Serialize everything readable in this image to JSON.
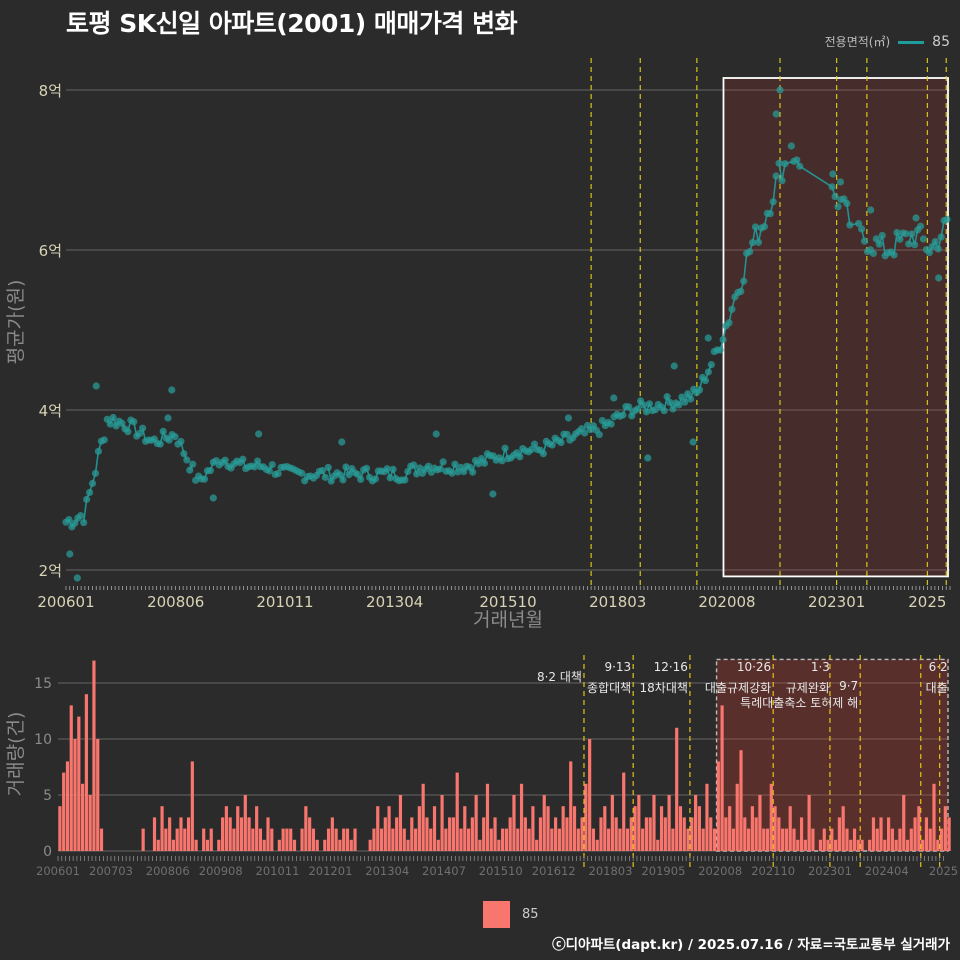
{
  "title": "토평 SK신일 아파트(2001) 매매가격 변화",
  "legend_top": {
    "title": "전용면적(㎡)",
    "label": "85",
    "color": "#1f9c9c"
  },
  "legend_bottom": {
    "label": "85",
    "color": "#f8766d"
  },
  "caption": "ⓒ디아파트(dapt.kr) / 2025.07.16 / 자료=국토교통부 실거래가",
  "chart_data": [
    {
      "type": "scatter",
      "title": "토평 SK신일 아파트(2001) 매매가격 변화",
      "xlabel": "거래년월",
      "ylabel": "평균가(원)",
      "x_tick_labels": [
        "200601",
        "200806",
        "201011",
        "201304",
        "201510",
        "201803",
        "202008",
        "202301",
        "2025"
      ],
      "y_tick_labels": [
        "2억",
        "4억",
        "6억",
        "8억"
      ],
      "ylim": [
        1.8,
        8.4
      ],
      "series": [
        {
          "name": "85",
          "trend": [
            [
              "2006-01",
              2.6
            ],
            [
              "2006-06",
              2.7
            ],
            [
              "2006-12",
              3.9
            ],
            [
              "2007-06",
              3.8
            ],
            [
              "2007-12",
              3.6
            ],
            [
              "2008-06",
              3.7
            ],
            [
              "2008-12",
              3.1
            ],
            [
              "2009-06",
              3.4
            ],
            [
              "2009-12",
              3.3
            ],
            [
              "2010-06",
              3.3
            ],
            [
              "2010-12",
              3.2
            ],
            [
              "2011-06",
              3.2
            ],
            [
              "2011-12",
              3.2
            ],
            [
              "2012-06",
              3.2
            ],
            [
              "2012-12",
              3.2
            ],
            [
              "2013-06",
              3.2
            ],
            [
              "2013-12",
              3.3
            ],
            [
              "2014-06",
              3.3
            ],
            [
              "2014-12",
              3.3
            ],
            [
              "2015-06",
              3.4
            ],
            [
              "2015-12",
              3.5
            ],
            [
              "2016-06",
              3.5
            ],
            [
              "2016-12",
              3.6
            ],
            [
              "2017-06",
              3.7
            ],
            [
              "2017-12",
              3.8
            ],
            [
              "2018-06",
              4.0
            ],
            [
              "2018-12",
              4.05
            ],
            [
              "2019-06",
              4.1
            ],
            [
              "2019-12",
              4.2
            ],
            [
              "2020-06",
              4.8
            ],
            [
              "2020-10",
              5.4
            ],
            [
              "2021-02",
              6.0
            ],
            [
              "2021-06",
              6.4
            ],
            [
              "2021-10",
              7.0
            ],
            [
              "2022-02",
              7.2
            ],
            [
              "2022-10",
              6.8
            ],
            [
              "2023-02",
              6.6
            ],
            [
              "2023-06",
              6.2
            ],
            [
              "2023-10",
              6.1
            ],
            [
              "2024-02",
              6.0
            ],
            [
              "2024-06",
              6.1
            ],
            [
              "2024-10",
              6.2
            ],
            [
              "2025-02",
              6.0
            ],
            [
              "2025-06",
              6.3
            ]
          ],
          "outliers": [
            [
              "2006-02",
              2.2
            ],
            [
              "2006-04",
              1.9
            ],
            [
              "2006-09",
              4.3
            ],
            [
              "2008-05",
              4.25
            ],
            [
              "2008-04",
              3.9
            ],
            [
              "2009-04",
              2.9
            ],
            [
              "2010-04",
              3.7
            ],
            [
              "2012-02",
              3.6
            ],
            [
              "2014-03",
              3.7
            ],
            [
              "2015-06",
              2.95
            ],
            [
              "2017-02",
              3.9
            ],
            [
              "2018-02",
              4.15
            ],
            [
              "2018-11",
              3.4
            ],
            [
              "2019-06",
              4.55
            ],
            [
              "2019-11",
              3.6
            ],
            [
              "2020-03",
              4.9
            ],
            [
              "2021-09",
              7.7
            ],
            [
              "2021-10",
              8.0
            ],
            [
              "2022-01",
              7.3
            ],
            [
              "2022-12",
              6.95
            ],
            [
              "2023-02",
              6.85
            ],
            [
              "2023-10",
              6.5
            ],
            [
              "2024-10",
              6.4
            ],
            [
              "2025-04",
              5.65
            ]
          ]
        }
      ],
      "highlight_period": [
        "2020-08",
        "2025-07"
      ],
      "policy_lines": [
        "2017-08",
        "2018-09",
        "2019-12",
        "2021-10",
        "2023-01",
        "2023-09",
        "2025-01",
        "2025-06"
      ]
    },
    {
      "type": "bar",
      "xlabel": "",
      "ylabel": "거래량(건)",
      "x_tick_labels": [
        "200601",
        "200703",
        "200806",
        "200908",
        "201011",
        "201201",
        "201304",
        "201407",
        "201510",
        "201612",
        "201803",
        "201905",
        "202008",
        "202110",
        "202301",
        "202404",
        "202507"
      ],
      "x_tick_display": [
        "200601",
        "200703",
        "200806",
        "200908",
        "201011",
        "201201",
        "201304",
        "201407",
        "201510",
        "201612",
        "201803",
        "201905",
        "202008",
        "202110",
        "202301",
        "202404",
        "2025"
      ],
      "y_tick_labels": [
        "0",
        "5",
        "10",
        "15"
      ],
      "ylim": [
        0,
        17.5
      ],
      "series": [
        {
          "name": "85",
          "values": [
            4,
            7,
            8,
            13,
            10,
            12,
            6,
            14,
            5,
            17,
            10,
            2,
            0,
            0,
            0,
            0,
            0,
            0,
            0,
            0,
            0,
            0,
            2,
            0,
            0,
            3,
            1,
            4,
            2,
            3,
            1,
            2,
            3,
            2,
            3,
            8,
            1,
            0,
            2,
            1,
            2,
            0,
            1,
            3,
            4,
            3,
            2,
            4,
            3,
            5,
            3,
            2,
            4,
            2,
            1,
            3,
            2,
            0,
            1,
            2,
            2,
            2,
            1,
            0,
            2,
            4,
            3,
            2,
            1,
            0,
            1,
            2,
            3,
            2,
            1,
            2,
            2,
            1,
            2,
            0,
            0,
            0,
            1,
            2,
            4,
            2,
            3,
            4,
            2,
            3,
            5,
            2,
            1,
            3,
            2,
            4,
            6,
            3,
            2,
            4,
            1,
            5,
            2,
            3,
            3,
            7,
            2,
            4,
            2,
            3,
            5,
            1,
            3,
            6,
            2,
            3,
            1,
            2,
            2,
            3,
            5,
            2,
            6,
            3,
            2,
            4,
            1,
            3,
            5,
            4,
            2,
            3,
            2,
            4,
            3,
            8,
            4,
            2,
            3,
            6,
            10,
            2,
            1,
            3,
            4,
            2,
            5,
            3,
            2,
            7,
            2,
            3,
            4,
            5,
            2,
            3,
            3,
            5,
            1,
            4,
            3,
            5,
            2,
            11,
            4,
            3,
            2,
            3,
            5,
            4,
            2,
            6,
            3,
            2,
            8,
            13,
            3,
            4,
            2,
            6,
            9,
            3,
            2,
            4,
            3,
            5,
            2,
            2,
            6,
            4,
            3,
            2,
            2,
            4,
            2,
            1,
            3,
            1,
            5,
            2,
            0,
            1,
            2,
            1,
            2,
            1,
            3,
            4,
            2,
            1,
            2,
            1,
            1,
            0,
            1,
            3,
            2,
            3,
            1,
            3,
            2,
            1,
            2,
            5,
            1,
            2,
            3,
            4,
            1,
            3,
            2,
            6,
            1,
            2,
            4,
            3
          ]
        }
      ],
      "highlight_period": [
        "2020-08",
        "2025-07"
      ],
      "policy_lines": [
        "2017-08",
        "2018-09",
        "2019-12",
        "2021-10",
        "2023-01",
        "2023-09",
        "2025-01",
        "2025-06"
      ],
      "annotations": [
        {
          "date": "2017-08",
          "lines": [
            "8·2 대책"
          ]
        },
        {
          "date": "2018-09",
          "lines": [
            "9·13",
            "종합대책"
          ]
        },
        {
          "date": "2019-12",
          "lines": [
            "12·16",
            "18차대책"
          ]
        },
        {
          "date": "2021-10",
          "lines": [
            "10·26",
            "대출규제강화"
          ]
        },
        {
          "date": "2023-01",
          "lines": [
            "1·3",
            "규제완화"
          ]
        },
        {
          "date": "2023-09",
          "lines": [
            "9·7",
            "특례대출축소 토허제 해"
          ]
        },
        {
          "date": "2025-06",
          "lines": [
            "6·2",
            "대출"
          ]
        }
      ]
    }
  ]
}
